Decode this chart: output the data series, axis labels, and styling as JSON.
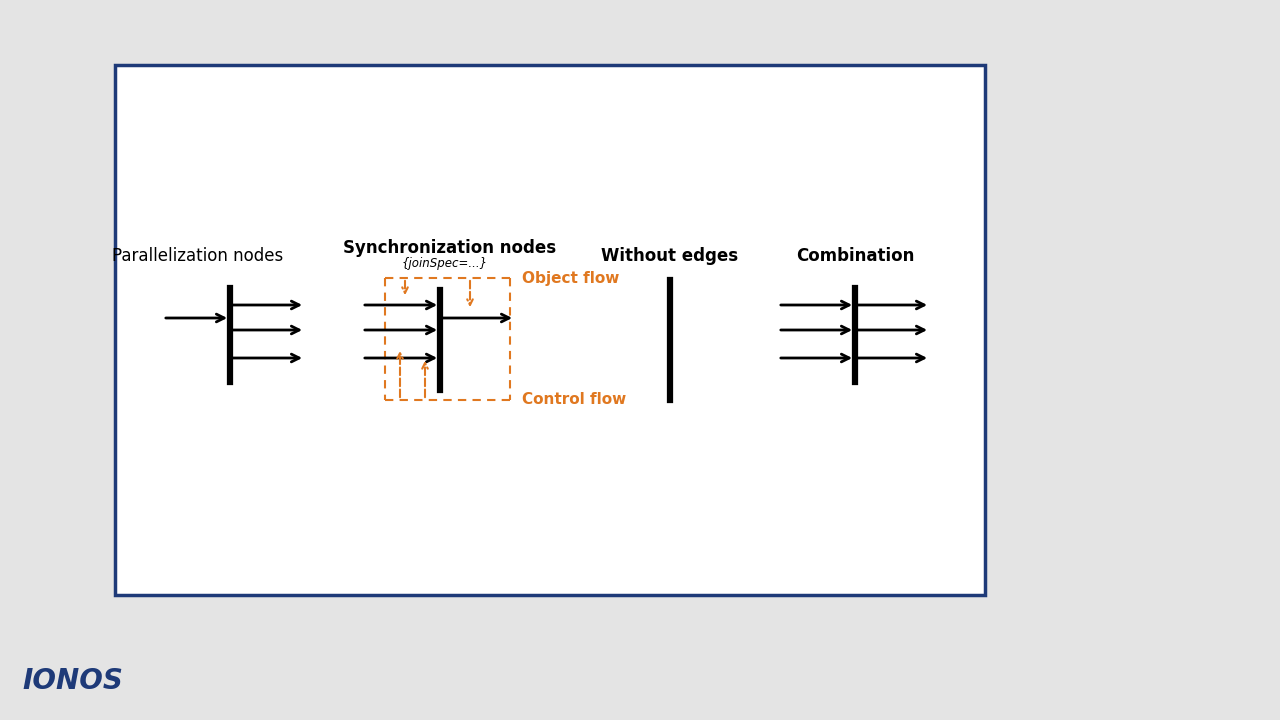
{
  "bg_outer": "#e4e4e4",
  "bg_inner": "#ffffff",
  "border_color": "#1e3a78",
  "border_lw": 2.5,
  "logo_text": "IONOS",
  "logo_color": "#1e3a78",
  "logo_fontsize": 20,
  "section_titles": [
    "Parallelization nodes",
    "Synchronization nodes",
    "Without edges",
    "Combination"
  ],
  "section_title_bold": [
    false,
    true,
    true,
    true
  ],
  "section_title_fontsize": 12,
  "join_spec_text": "{joinSpec=...}",
  "join_spec_fontsize": 8.5,
  "object_flow_text": "Object flow",
  "object_flow_color": "#e07820",
  "object_flow_fontsize": 11,
  "control_flow_text": "Control flow",
  "control_flow_color": "#e07820",
  "control_flow_fontsize": 11,
  "arrow_color": "#000000",
  "arrow_lw": 2.0,
  "bar_color": "#000000",
  "bar_lw": 4.0,
  "orange_color": "#e07820",
  "orange_lw": 1.5,
  "fig_width": 12.8,
  "fig_height": 7.2
}
